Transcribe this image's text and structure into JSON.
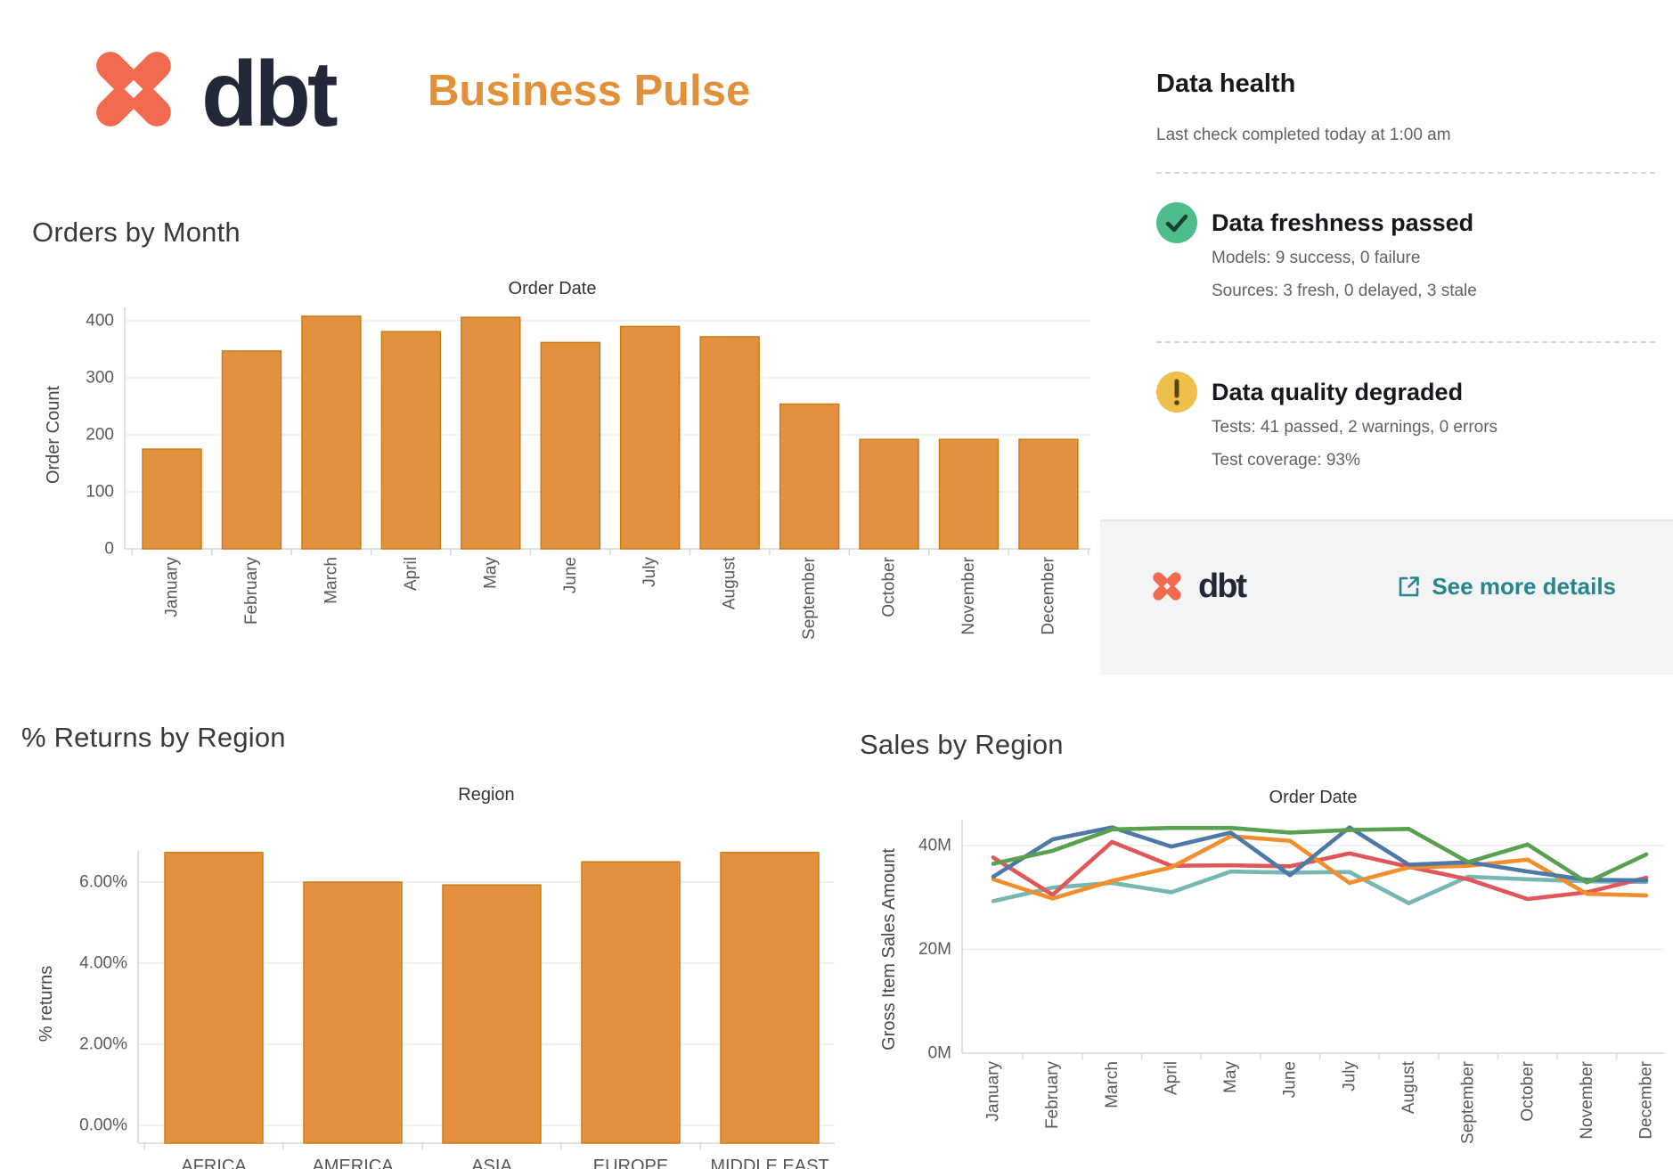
{
  "header": {
    "brand": "dbt",
    "title": "Business Pulse"
  },
  "data_health": {
    "title": "Data health",
    "subtitle": "Last check completed today at 1:00 am",
    "sections": [
      {
        "status": "passed",
        "icon": "check",
        "title": "Data freshness passed",
        "lines": [
          "Models: 9 success, 0 failure",
          "Sources: 3 fresh, 0 delayed, 3 stale"
        ]
      },
      {
        "status": "warning",
        "icon": "exclamation",
        "title": "Data quality degraded",
        "lines": [
          "Tests: 41 passed, 2 warnings, 0 errors",
          "Test coverage: 93%"
        ]
      }
    ],
    "footer": {
      "brand": "dbt",
      "link_label": "See more details"
    }
  },
  "colors": {
    "brand_coral": "#f26b50",
    "brand_navy": "#222838",
    "accent_orange": "#e2913a",
    "link_teal": "#26858d",
    "status_green": "#4ebd8c",
    "status_yellow": "#eec04b",
    "footer_bg": "#f3f4f6"
  },
  "chart_data": [
    {
      "id": "orders_by_month",
      "type": "bar",
      "title": "Orders by Month",
      "pane_title": "Order Date",
      "ylabel": "Order Count",
      "categories": [
        "January",
        "February",
        "March",
        "April",
        "May",
        "June",
        "July",
        "August",
        "September",
        "October",
        "November",
        "December"
      ],
      "values": [
        175,
        347,
        408,
        381,
        406,
        362,
        390,
        372,
        254,
        192,
        192,
        192
      ],
      "yticks": [
        {
          "v": 0,
          "label": "0"
        },
        {
          "v": 100,
          "label": "100"
        },
        {
          "v": 200,
          "label": "200"
        },
        {
          "v": 300,
          "label": "300"
        },
        {
          "v": 400,
          "label": "400"
        }
      ],
      "ylim": [
        0,
        420
      ],
      "grid": true,
      "legend": "none",
      "bar_color": "#e49041",
      "bar_border": "#c9790f"
    },
    {
      "id": "returns_by_region",
      "type": "bar",
      "title": "% Returns by Region",
      "pane_title": "Region",
      "ylabel": "% returns",
      "categories": [
        "AFRICA",
        "AMERICA",
        "ASIA",
        "EUROPE",
        "MIDDLE EAST"
      ],
      "values": [
        6.73,
        6.0,
        5.93,
        6.5,
        6.73
      ],
      "yticks": [
        {
          "v": 0,
          "label": "0.00%"
        },
        {
          "v": 2,
          "label": "2.00%"
        },
        {
          "v": 4,
          "label": "4.00%"
        },
        {
          "v": 6,
          "label": "6.00%"
        }
      ],
      "ylim": [
        -0.44,
        7.2
      ],
      "grid": true,
      "legend": "none",
      "bar_color": "#e49041",
      "bar_border": "#c9790f"
    },
    {
      "id": "sales_by_region",
      "type": "line",
      "title": "Sales by Region",
      "pane_title": "Order Date",
      "ylabel": "Gross Item Sales Amount",
      "categories": [
        "January",
        "February",
        "March",
        "April",
        "May",
        "June",
        "July",
        "August",
        "September",
        "October",
        "November",
        "December"
      ],
      "yticks": [
        {
          "v": 0,
          "label": "0M"
        },
        {
          "v": 20,
          "label": "20M"
        },
        {
          "v": 40,
          "label": "40M"
        }
      ],
      "ylim": [
        0,
        45
      ],
      "grid": true,
      "legend": "none",
      "units": "millions",
      "series": [
        {
          "name": "teal-region",
          "color": "#76b7b2",
          "values": [
            29.3,
            31.9,
            32.8,
            31.0,
            35.0,
            34.8,
            34.9,
            28.9,
            34.0,
            33.5,
            33.1,
            33.0
          ]
        },
        {
          "name": "red-region",
          "color": "#e15759",
          "values": [
            37.7,
            30.5,
            40.7,
            36.1,
            36.2,
            36.0,
            38.5,
            35.9,
            33.5,
            29.7,
            31.0,
            33.8
          ]
        },
        {
          "name": "orange-region",
          "color": "#f28e2b",
          "values": [
            33.5,
            29.8,
            33.2,
            35.8,
            41.8,
            40.9,
            32.8,
            35.8,
            36.1,
            37.3,
            30.7,
            30.4
          ]
        },
        {
          "name": "blue-region",
          "color": "#4e79a7",
          "values": [
            34.0,
            41.2,
            43.5,
            39.8,
            42.5,
            34.3,
            43.5,
            36.3,
            36.8,
            35.0,
            33.4,
            33.3
          ]
        },
        {
          "name": "green-region",
          "color": "#59a14f",
          "values": [
            36.5,
            39.0,
            43.1,
            43.4,
            43.4,
            42.5,
            43.0,
            43.2,
            36.8,
            40.2,
            32.9,
            38.3
          ]
        }
      ]
    }
  ]
}
